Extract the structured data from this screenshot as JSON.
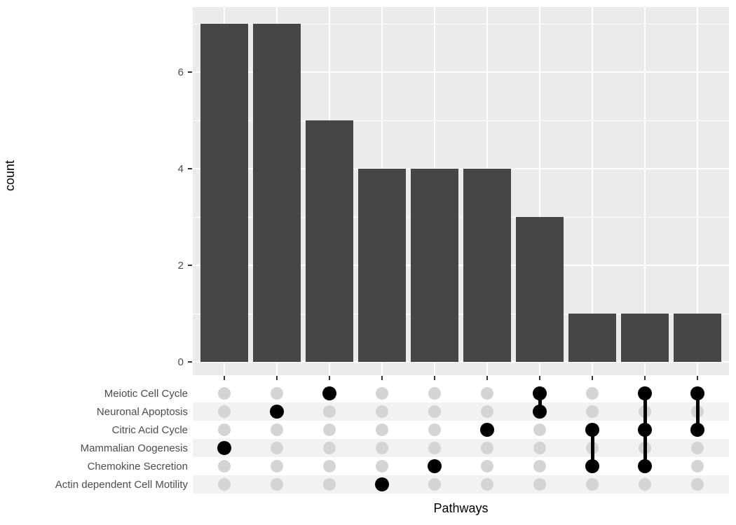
{
  "chart_data": {
    "type": "bar",
    "variant": "upset-plot",
    "title": "",
    "ylabel": "count",
    "xlabel": "Pathways",
    "ylim": [
      0,
      7.35
    ],
    "y_major_ticks": [
      0,
      2,
      4,
      6
    ],
    "y_minor_ticks": [
      1,
      3,
      5,
      7
    ],
    "grid": "on",
    "legend": "none",
    "sets": [
      "Meiotic Cell Cycle",
      "Neuronal Apoptosis",
      "Citric Acid Cycle",
      "Mammalian Oogenesis",
      "Chemokine Secretion",
      "Actin dependent Cell Motility"
    ],
    "intersections": [
      {
        "count": 7,
        "members": [
          "Mammalian Oogenesis"
        ]
      },
      {
        "count": 7,
        "members": [
          "Neuronal Apoptosis"
        ]
      },
      {
        "count": 5,
        "members": [
          "Meiotic Cell Cycle"
        ]
      },
      {
        "count": 4,
        "members": [
          "Actin dependent Cell Motility"
        ]
      },
      {
        "count": 4,
        "members": [
          "Chemokine Secretion"
        ]
      },
      {
        "count": 4,
        "members": [
          "Citric Acid Cycle"
        ]
      },
      {
        "count": 3,
        "members": [
          "Meiotic Cell Cycle",
          "Neuronal Apoptosis"
        ]
      },
      {
        "count": 1,
        "members": [
          "Citric Acid Cycle",
          "Chemokine Secretion"
        ]
      },
      {
        "count": 1,
        "members": [
          "Meiotic Cell Cycle",
          "Citric Acid Cycle",
          "Chemokine Secretion"
        ]
      },
      {
        "count": 1,
        "members": [
          "Meiotic Cell Cycle",
          "Citric Acid Cycle"
        ]
      }
    ]
  },
  "colors": {
    "panel_background": "#EBEBEB",
    "bar_fill": "#464646",
    "gridline": "#FFFFFF",
    "empty_dot": "#D4D4D4",
    "filled_dot": "#000000",
    "stripe": "#F2F2F2",
    "axis_text": "#4D4D4D",
    "axis_title": "#000000",
    "tick_mark": "#333333"
  }
}
